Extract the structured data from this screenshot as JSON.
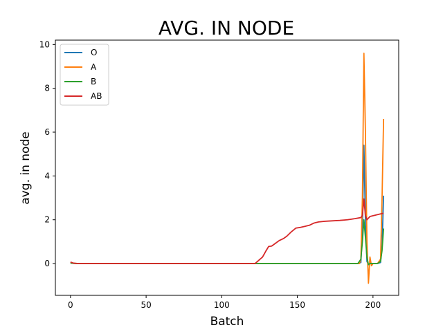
{
  "chart_data": {
    "type": "line",
    "title": "AVG. IN NODE",
    "xlabel": "Batch",
    "ylabel": "avg. in node",
    "xlim": [
      -10,
      217
    ],
    "ylim": [
      -1.45,
      10.2
    ],
    "xticks": [
      0,
      50,
      100,
      150,
      200
    ],
    "yticks": [
      0,
      2,
      4,
      6,
      8,
      10
    ],
    "grid": false,
    "legend_position": "top-left",
    "series": [
      {
        "name": "O",
        "color": "#1f77b4",
        "points": [
          [
            0,
            0.05
          ],
          [
            2,
            0.01
          ],
          [
            5,
            0
          ],
          [
            190,
            0
          ],
          [
            192,
            0.05
          ],
          [
            193,
            1.5
          ],
          [
            194,
            5.4
          ],
          [
            195,
            2.0
          ],
          [
            196,
            0.1
          ],
          [
            197,
            -0.05
          ],
          [
            198,
            0
          ],
          [
            203,
            0
          ],
          [
            205,
            0.05
          ],
          [
            206,
            0.8
          ],
          [
            207,
            3.1
          ]
        ]
      },
      {
        "name": "A",
        "color": "#ff7f0e",
        "points": [
          [
            0,
            0.05
          ],
          [
            2,
            0.01
          ],
          [
            5,
            0
          ],
          [
            191,
            0
          ],
          [
            192,
            0.2
          ],
          [
            193,
            3.0
          ],
          [
            194,
            9.6
          ],
          [
            195,
            6.0
          ],
          [
            196,
            1.0
          ],
          [
            197,
            -0.9
          ],
          [
            198,
            0.3
          ],
          [
            199,
            -0.1
          ],
          [
            200,
            0
          ],
          [
            203,
            0
          ],
          [
            205,
            0.2
          ],
          [
            206,
            3.0
          ],
          [
            207,
            6.6
          ]
        ]
      },
      {
        "name": "B",
        "color": "#2ca02c",
        "points": [
          [
            0,
            0.02
          ],
          [
            5,
            0
          ],
          [
            190,
            0
          ],
          [
            192,
            0.2
          ],
          [
            193,
            1.0
          ],
          [
            194,
            2.0
          ],
          [
            195,
            1.2
          ],
          [
            196,
            0.3
          ],
          [
            197,
            -0.05
          ],
          [
            198,
            0
          ],
          [
            203,
            0
          ],
          [
            205,
            0.1
          ],
          [
            206,
            0.6
          ],
          [
            207,
            1.6
          ]
        ]
      },
      {
        "name": "AB",
        "color": "#d62728",
        "points": [
          [
            0,
            0.07
          ],
          [
            2,
            0.02
          ],
          [
            5,
            0
          ],
          [
            122,
            0
          ],
          [
            124,
            0.12
          ],
          [
            127,
            0.3
          ],
          [
            129,
            0.55
          ],
          [
            131,
            0.78
          ],
          [
            133,
            0.8
          ],
          [
            136,
            0.95
          ],
          [
            138,
            1.05
          ],
          [
            141,
            1.15
          ],
          [
            143,
            1.25
          ],
          [
            146,
            1.45
          ],
          [
            149,
            1.62
          ],
          [
            152,
            1.65
          ],
          [
            155,
            1.7
          ],
          [
            158,
            1.75
          ],
          [
            161,
            1.85
          ],
          [
            164,
            1.9
          ],
          [
            168,
            1.93
          ],
          [
            173,
            1.95
          ],
          [
            178,
            1.97
          ],
          [
            183,
            2.0
          ],
          [
            188,
            2.05
          ],
          [
            192,
            2.1
          ],
          [
            193,
            2.2
          ],
          [
            194,
            2.95
          ],
          [
            195,
            2.2
          ],
          [
            196,
            2.0
          ],
          [
            198,
            2.15
          ],
          [
            201,
            2.2
          ],
          [
            204,
            2.25
          ],
          [
            207,
            2.3
          ]
        ]
      }
    ]
  }
}
